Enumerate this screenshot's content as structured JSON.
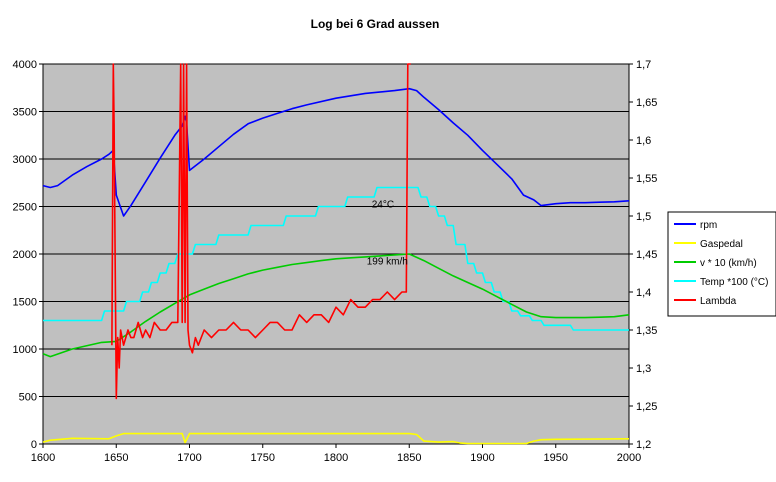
{
  "chart_data": {
    "type": "line",
    "title": "Log bei 6 Grad aussen",
    "xlim": [
      1600,
      2000
    ],
    "x_ticks": [
      "1600",
      "1650",
      "1700",
      "1750",
      "1800",
      "1850",
      "1900",
      "1950",
      "2000"
    ],
    "y_left_lim": [
      0,
      4000
    ],
    "y_left_ticks": [
      "0",
      "500",
      "1000",
      "1500",
      "2000",
      "2500",
      "3000",
      "3500",
      "4000"
    ],
    "y_right_lim": [
      1.2,
      1.7
    ],
    "y_right_ticks": [
      "1,2",
      "1,25",
      "1,3",
      "1,35",
      "1,4",
      "1,45",
      "1,5",
      "1,55",
      "1,6",
      "1,65",
      "1,7"
    ],
    "grid": "horizontal",
    "plot_background": "#c0c0c0",
    "legend_position": "right",
    "series": [
      {
        "name": "rpm",
        "axis": "left",
        "color": "#0000ff",
        "x": [
          1600,
          1605,
          1610,
          1620,
          1630,
          1640,
          1645,
          1648,
          1650,
          1655,
          1660,
          1670,
          1680,
          1690,
          1695,
          1697,
          1698,
          1700,
          1710,
          1720,
          1730,
          1740,
          1750,
          1760,
          1770,
          1780,
          1800,
          1820,
          1840,
          1850,
          1855,
          1860,
          1870,
          1880,
          1890,
          1900,
          1910,
          1920,
          1928,
          1935,
          1940,
          1950,
          1960,
          1970,
          1980,
          1990,
          2000
        ],
        "y": [
          2720,
          2700,
          2720,
          2830,
          2920,
          3000,
          3050,
          3090,
          2620,
          2400,
          2510,
          2760,
          3010,
          3250,
          3350,
          3450,
          3380,
          2880,
          3000,
          3130,
          3260,
          3370,
          3430,
          3480,
          3530,
          3570,
          3640,
          3690,
          3720,
          3740,
          3720,
          3650,
          3520,
          3380,
          3250,
          3090,
          2940,
          2790,
          2620,
          2570,
          2510,
          2530,
          2540,
          2540,
          2545,
          2550,
          2560
        ]
      },
      {
        "name": "Gaspedal",
        "axis": "left",
        "color": "#ffff00",
        "x": [
          1600,
          1605,
          1620,
          1645,
          1650,
          1655,
          1695,
          1697,
          1700,
          1710,
          1750,
          1800,
          1850,
          1855,
          1860,
          1870,
          1880,
          1885,
          1890,
          1930,
          1935,
          1940,
          1950,
          2000
        ],
        "y": [
          20,
          40,
          60,
          55,
          85,
          110,
          110,
          15,
          110,
          110,
          110,
          110,
          110,
          100,
          30,
          20,
          25,
          10,
          5,
          5,
          30,
          45,
          50,
          55
        ]
      },
      {
        "name": "v * 10 (km/h)",
        "axis": "left",
        "color": "#00cc00",
        "x": [
          1600,
          1605,
          1620,
          1640,
          1650,
          1660,
          1670,
          1680,
          1690,
          1700,
          1710,
          1720,
          1730,
          1740,
          1750,
          1760,
          1770,
          1780,
          1790,
          1800,
          1810,
          1820,
          1830,
          1840,
          1850,
          1860,
          1870,
          1880,
          1890,
          1900,
          1910,
          1920,
          1930,
          1940,
          1950,
          1960,
          1970,
          1980,
          1990,
          2000
        ],
        "y": [
          950,
          920,
          1000,
          1070,
          1080,
          1180,
          1290,
          1390,
          1480,
          1570,
          1630,
          1690,
          1740,
          1790,
          1830,
          1860,
          1890,
          1910,
          1930,
          1950,
          1960,
          1970,
          1980,
          1990,
          2000,
          1930,
          1850,
          1770,
          1700,
          1630,
          1550,
          1470,
          1390,
          1340,
          1330,
          1330,
          1330,
          1335,
          1340,
          1360
        ]
      },
      {
        "name": "Temp *100 (°C)",
        "axis": "left",
        "color": "#00ffff",
        "x": [
          1600,
          1640,
          1642,
          1655,
          1657,
          1666,
          1668,
          1672,
          1674,
          1678,
          1680,
          1684,
          1686,
          1690,
          1692,
          1702,
          1704,
          1718,
          1720,
          1740,
          1742,
          1764,
          1766,
          1786,
          1788,
          1806,
          1808,
          1826,
          1828,
          1856,
          1858,
          1862,
          1864,
          1868,
          1870,
          1874,
          1876,
          1880,
          1882,
          1888,
          1890,
          1894,
          1896,
          1900,
          1902,
          1906,
          1908,
          1912,
          1914,
          1918,
          1920,
          1924,
          1926,
          1932,
          1934,
          1940,
          1942,
          1960,
          1962,
          2000
        ],
        "y": [
          1300,
          1300,
          1400,
          1400,
          1500,
          1500,
          1600,
          1600,
          1700,
          1700,
          1800,
          1800,
          1900,
          1900,
          2000,
          2000,
          2100,
          2100,
          2200,
          2200,
          2300,
          2300,
          2400,
          2400,
          2500,
          2500,
          2600,
          2600,
          2700,
          2700,
          2600,
          2600,
          2500,
          2500,
          2400,
          2400,
          2300,
          2300,
          2100,
          2100,
          1900,
          1900,
          1800,
          1800,
          1700,
          1700,
          1600,
          1600,
          1500,
          1500,
          1400,
          1400,
          1350,
          1350,
          1300,
          1300,
          1250,
          1250,
          1200,
          1200
        ]
      },
      {
        "name": "Lambda",
        "axis": "right",
        "color": "#ff0000",
        "x": [
          1647,
          1648,
          1648.5,
          1649,
          1650,
          1651,
          1652,
          1653,
          1655,
          1658,
          1660,
          1662,
          1665,
          1668,
          1670,
          1673,
          1676,
          1680,
          1684,
          1688,
          1692,
          1694,
          1695,
          1696,
          1697,
          1698,
          1699,
          1700,
          1702,
          1704,
          1706,
          1708,
          1710,
          1715,
          1720,
          1725,
          1730,
          1735,
          1740,
          1745,
          1750,
          1755,
          1760,
          1765,
          1770,
          1775,
          1780,
          1785,
          1790,
          1795,
          1800,
          1805,
          1810,
          1815,
          1820,
          1825,
          1830,
          1835,
          1840,
          1845,
          1848,
          1849,
          1850,
          1851
        ],
        "y": [
          1.33,
          1.7,
          1.62,
          1.5,
          1.26,
          1.34,
          1.3,
          1.35,
          1.33,
          1.35,
          1.34,
          1.34,
          1.36,
          1.34,
          1.35,
          1.34,
          1.36,
          1.35,
          1.35,
          1.36,
          1.36,
          1.7,
          1.36,
          1.7,
          1.36,
          1.7,
          1.35,
          1.33,
          1.32,
          1.34,
          1.33,
          1.34,
          1.35,
          1.34,
          1.35,
          1.35,
          1.36,
          1.35,
          1.35,
          1.34,
          1.35,
          1.36,
          1.36,
          1.35,
          1.35,
          1.37,
          1.36,
          1.37,
          1.37,
          1.36,
          1.38,
          1.37,
          1.39,
          1.38,
          1.38,
          1.39,
          1.39,
          1.4,
          1.39,
          1.4,
          1.4,
          1.7,
          1.7,
          1.7
        ]
      }
    ],
    "annotations": [
      {
        "text": "24°C",
        "x": 1832,
        "y": 2490
      },
      {
        "text": "199 km/h",
        "x": 1835,
        "y": 1890
      }
    ]
  }
}
